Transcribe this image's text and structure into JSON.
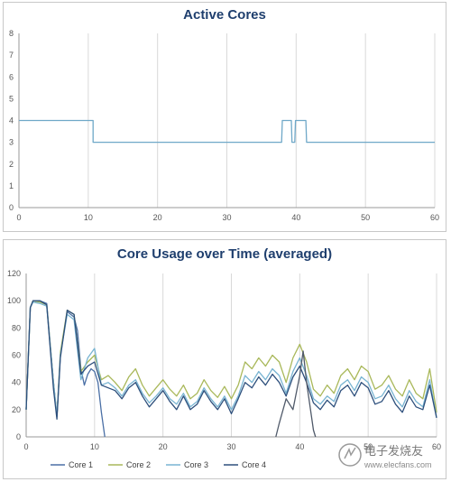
{
  "chart_data": [
    {
      "type": "line",
      "title": "Active Cores",
      "xlabel": "",
      "ylabel": "",
      "xlim": [
        0,
        60
      ],
      "ylim": [
        0,
        8
      ],
      "x_ticks": [
        0,
        10,
        20,
        30,
        40,
        50,
        60
      ],
      "y_ticks": [
        0,
        1,
        2,
        3,
        4,
        5,
        6,
        7,
        8
      ],
      "grid": "vertical",
      "color": "#6fa8c8",
      "series": [
        {
          "points": [
            [
              0,
              4
            ],
            [
              10.7,
              4
            ],
            [
              10.7,
              3
            ],
            [
              37.9,
              3
            ],
            [
              38,
              4
            ],
            [
              39.3,
              4
            ],
            [
              39.4,
              3
            ],
            [
              39.8,
              3
            ],
            [
              39.9,
              4
            ],
            [
              41.4,
              4
            ],
            [
              41.5,
              3
            ],
            [
              60,
              3
            ]
          ]
        }
      ]
    },
    {
      "type": "line",
      "title": "Core Usage over Time (averaged)",
      "xlabel": "",
      "ylabel": "",
      "xlim": [
        0,
        60
      ],
      "ylim": [
        0,
        120
      ],
      "x_ticks": [
        0,
        10,
        20,
        30,
        40,
        50,
        60
      ],
      "y_ticks": [
        0,
        20,
        40,
        60,
        80,
        100,
        120
      ],
      "grid": "vertical",
      "legend": "bottom",
      "series": [
        {
          "name": "Core 1",
          "color": "#4a6fa5",
          "points": [
            [
              0,
              20
            ],
            [
              0.6,
              95
            ],
            [
              1,
              100
            ],
            [
              2,
              100
            ],
            [
              3,
              98
            ],
            [
              4,
              40
            ],
            [
              4.5,
              15
            ],
            [
              5,
              60
            ],
            [
              6,
              92
            ],
            [
              7,
              88
            ],
            [
              7.5,
              78
            ],
            [
              8,
              50
            ],
            [
              8.5,
              38
            ],
            [
              9,
              46
            ],
            [
              9.5,
              50
            ],
            [
              10,
              48
            ],
            [
              10.5,
              40
            ],
            [
              11,
              18
            ],
            [
              11.5,
              0
            ]
          ]
        },
        {
          "name": "Core 2",
          "color": "#a9b85a",
          "points": [
            [
              0,
              20
            ],
            [
              0.6,
              95
            ],
            [
              1,
              100
            ],
            [
              2,
              99
            ],
            [
              3,
              97
            ],
            [
              4,
              40
            ],
            [
              4.5,
              15
            ],
            [
              5,
              62
            ],
            [
              6,
              93
            ],
            [
              7,
              90
            ],
            [
              8,
              48
            ],
            [
              9,
              55
            ],
            [
              10,
              60
            ],
            [
              11,
              42
            ],
            [
              12,
              45
            ],
            [
              13,
              40
            ],
            [
              14,
              34
            ],
            [
              15,
              44
            ],
            [
              16,
              50
            ],
            [
              17,
              38
            ],
            [
              18,
              30
            ],
            [
              19,
              36
            ],
            [
              20,
              42
            ],
            [
              21,
              35
            ],
            [
              22,
              30
            ],
            [
              23,
              38
            ],
            [
              24,
              28
            ],
            [
              25,
              32
            ],
            [
              26,
              42
            ],
            [
              27,
              34
            ],
            [
              28,
              29
            ],
            [
              29,
              37
            ],
            [
              30,
              28
            ],
            [
              31,
              38
            ],
            [
              32,
              55
            ],
            [
              33,
              50
            ],
            [
              34,
              58
            ],
            [
              35,
              52
            ],
            [
              36,
              60
            ],
            [
              37,
              55
            ],
            [
              38,
              40
            ],
            [
              39,
              58
            ],
            [
              40,
              68
            ],
            [
              41,
              55
            ],
            [
              42,
              35
            ],
            [
              43,
              30
            ],
            [
              44,
              38
            ],
            [
              45,
              32
            ],
            [
              46,
              45
            ],
            [
              47,
              50
            ],
            [
              48,
              42
            ],
            [
              49,
              52
            ],
            [
              50,
              48
            ],
            [
              51,
              35
            ],
            [
              52,
              38
            ],
            [
              53,
              45
            ],
            [
              54,
              35
            ],
            [
              55,
              30
            ],
            [
              56,
              42
            ],
            [
              57,
              32
            ],
            [
              58,
              28
            ],
            [
              59,
              50
            ],
            [
              60,
              18
            ]
          ]
        },
        {
          "name": "Core 3",
          "color": "#78b4d2",
          "points": [
            [
              0,
              20
            ],
            [
              0.6,
              95
            ],
            [
              1,
              99
            ],
            [
              2,
              98
            ],
            [
              3,
              96
            ],
            [
              4,
              40
            ],
            [
              4.5,
              15
            ],
            [
              5,
              60
            ],
            [
              6,
              90
            ],
            [
              7,
              86
            ],
            [
              8,
              42
            ],
            [
              9,
              58
            ],
            [
              10,
              65
            ],
            [
              11,
              38
            ],
            [
              12,
              40
            ],
            [
              13,
              36
            ],
            [
              14,
              30
            ],
            [
              15,
              38
            ],
            [
              16,
              42
            ],
            [
              17,
              32
            ],
            [
              18,
              25
            ],
            [
              19,
              30
            ],
            [
              20,
              36
            ],
            [
              21,
              28
            ],
            [
              22,
              24
            ],
            [
              23,
              32
            ],
            [
              24,
              22
            ],
            [
              25,
              26
            ],
            [
              26,
              36
            ],
            [
              27,
              28
            ],
            [
              28,
              22
            ],
            [
              29,
              30
            ],
            [
              30,
              20
            ],
            [
              31,
              30
            ],
            [
              32,
              45
            ],
            [
              33,
              40
            ],
            [
              34,
              48
            ],
            [
              35,
              42
            ],
            [
              36,
              50
            ],
            [
              37,
              45
            ],
            [
              38,
              32
            ],
            [
              39,
              48
            ],
            [
              40,
              58
            ],
            [
              41,
              45
            ],
            [
              42,
              28
            ],
            [
              43,
              24
            ],
            [
              44,
              30
            ],
            [
              45,
              26
            ],
            [
              46,
              38
            ],
            [
              47,
              42
            ],
            [
              48,
              34
            ],
            [
              49,
              44
            ],
            [
              50,
              40
            ],
            [
              51,
              28
            ],
            [
              52,
              30
            ],
            [
              53,
              38
            ],
            [
              54,
              28
            ],
            [
              55,
              22
            ],
            [
              56,
              34
            ],
            [
              57,
              26
            ],
            [
              58,
              22
            ],
            [
              59,
              42
            ],
            [
              60,
              14
            ]
          ]
        },
        {
          "name": "Core 4",
          "color": "#2d4f7c",
          "points": [
            [
              0,
              20
            ],
            [
              0.6,
              95
            ],
            [
              1,
              100
            ],
            [
              2,
              100
            ],
            [
              3,
              97
            ],
            [
              4,
              35
            ],
            [
              4.5,
              13
            ],
            [
              5,
              58
            ],
            [
              6,
              93
            ],
            [
              7,
              90
            ],
            [
              8,
              46
            ],
            [
              9,
              52
            ],
            [
              10,
              55
            ],
            [
              11,
              38
            ],
            [
              12,
              36
            ],
            [
              13,
              34
            ],
            [
              14,
              28
            ],
            [
              15,
              36
            ],
            [
              16,
              40
            ],
            [
              17,
              30
            ],
            [
              18,
              22
            ],
            [
              19,
              28
            ],
            [
              20,
              34
            ],
            [
              21,
              26
            ],
            [
              22,
              20
            ],
            [
              23,
              30
            ],
            [
              24,
              20
            ],
            [
              25,
              24
            ],
            [
              26,
              34
            ],
            [
              27,
              26
            ],
            [
              28,
              20
            ],
            [
              29,
              28
            ],
            [
              30,
              17
            ],
            [
              31,
              28
            ],
            [
              32,
              40
            ],
            [
              33,
              36
            ],
            [
              34,
              44
            ],
            [
              35,
              38
            ],
            [
              36,
              46
            ],
            [
              37,
              40
            ],
            [
              38,
              30
            ],
            [
              39,
              44
            ],
            [
              40,
              52
            ],
            [
              41,
              40
            ],
            [
              42,
              25
            ],
            [
              43,
              20
            ],
            [
              44,
              27
            ],
            [
              45,
              22
            ],
            [
              46,
              34
            ],
            [
              47,
              38
            ],
            [
              48,
              30
            ],
            [
              49,
              40
            ],
            [
              50,
              36
            ],
            [
              51,
              24
            ],
            [
              52,
              26
            ],
            [
              53,
              34
            ],
            [
              54,
              24
            ],
            [
              55,
              18
            ],
            [
              56,
              30
            ],
            [
              57,
              22
            ],
            [
              58,
              20
            ],
            [
              59,
              38
            ],
            [
              60,
              14
            ]
          ]
        },
        {
          "name": "",
          "color": "#505a6a",
          "points": [
            [
              36.5,
              0
            ],
            [
              37,
              10
            ],
            [
              38,
              28
            ],
            [
              39,
              20
            ],
            [
              40,
              45
            ],
            [
              40.5,
              63
            ],
            [
              41,
              40
            ],
            [
              42,
              5
            ],
            [
              42.3,
              0
            ]
          ]
        }
      ]
    }
  ],
  "watermark": {
    "title": "电子发烧友",
    "url": "www.elecfans.com"
  }
}
